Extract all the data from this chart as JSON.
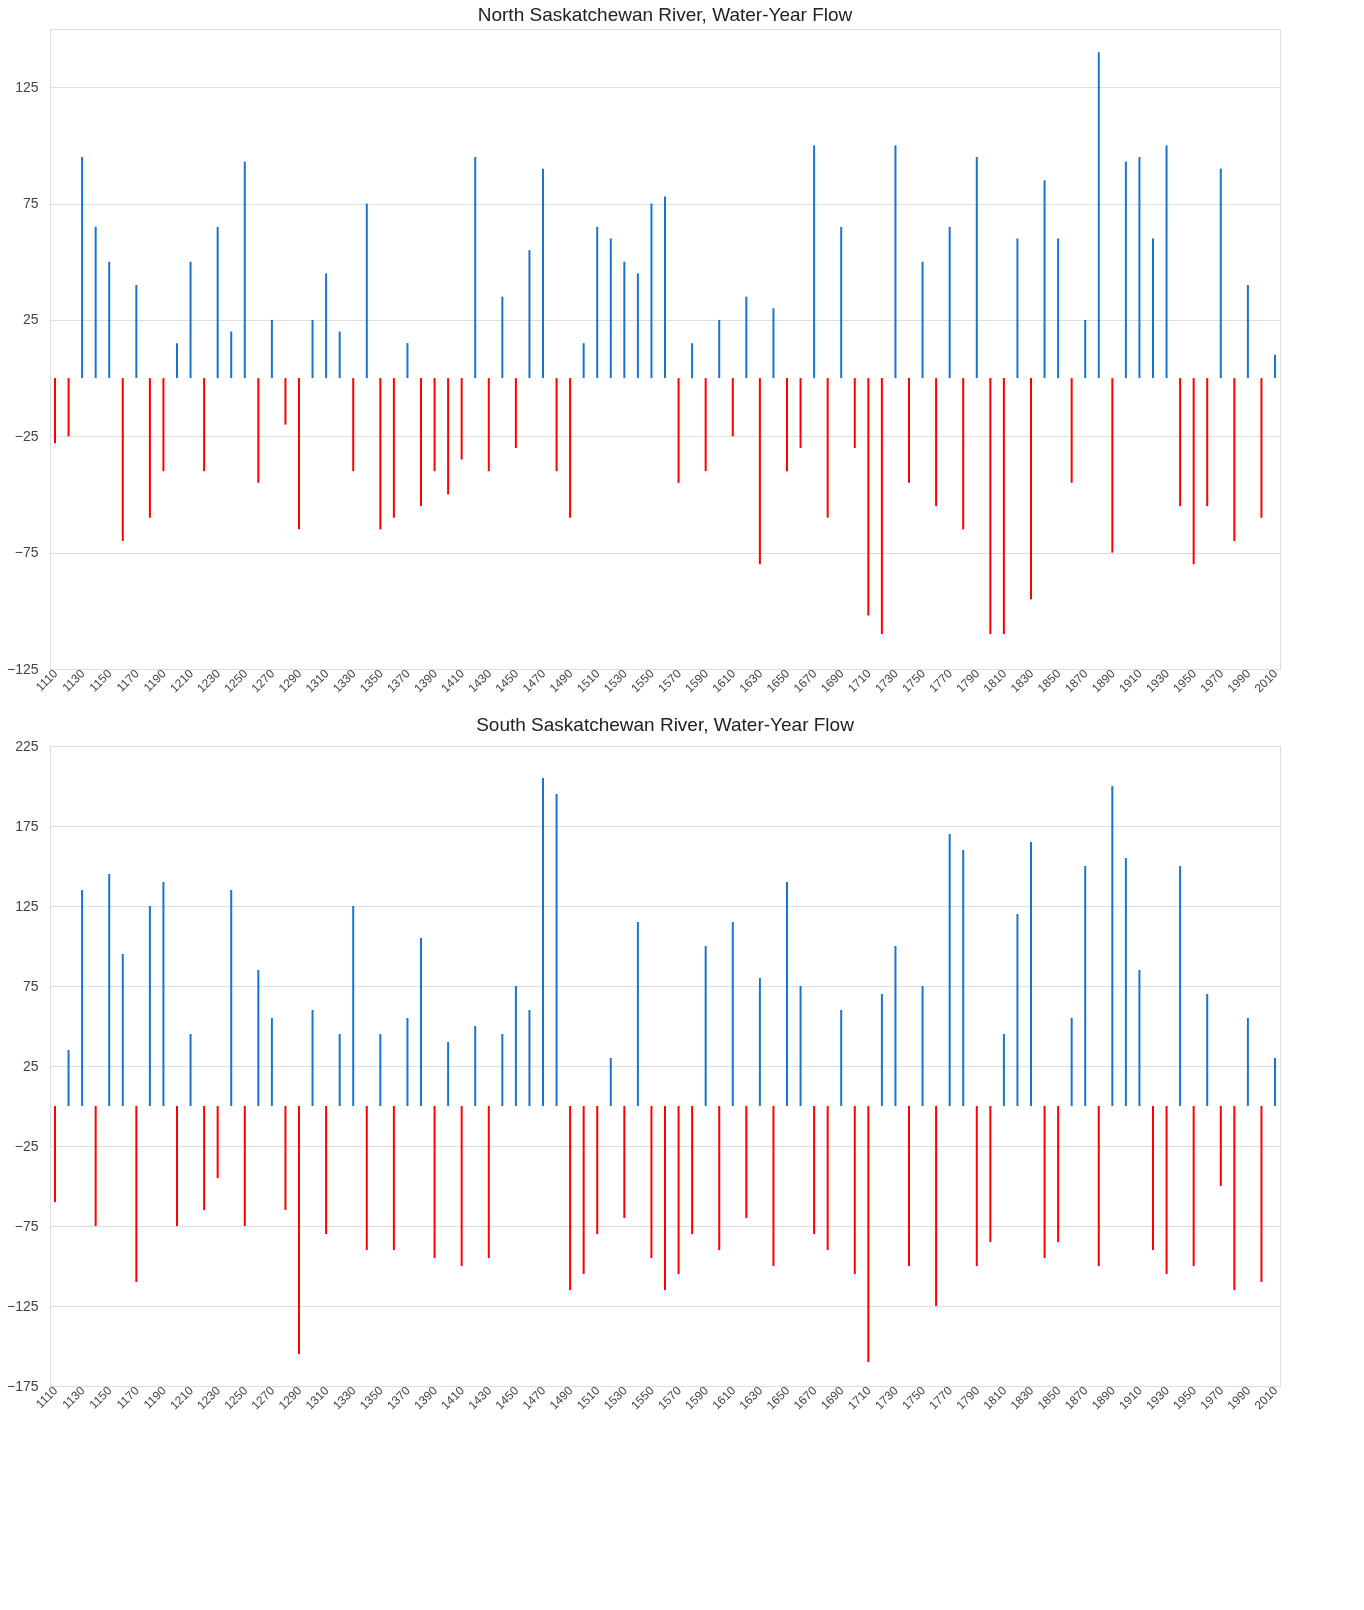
{
  "chart_data": [
    {
      "type": "bar",
      "title": "North Saskatchewan River, Water-Year Flow",
      "grid": "y",
      "xlim": [
        1110,
        2010
      ],
      "xticks": [
        1110,
        1130,
        1150,
        1170,
        1190,
        1210,
        1230,
        1250,
        1270,
        1290,
        1310,
        1330,
        1350,
        1370,
        1390,
        1410,
        1430,
        1450,
        1470,
        1490,
        1510,
        1530,
        1550,
        1570,
        1590,
        1610,
        1630,
        1650,
        1670,
        1690,
        1710,
        1730,
        1750,
        1770,
        1790,
        1810,
        1830,
        1850,
        1870,
        1890,
        1910,
        1930,
        1950,
        1970,
        1990,
        2010
      ],
      "ylim": [
        -125,
        150
      ],
      "yticks": [
        -125,
        -75,
        -25,
        25,
        75,
        125
      ],
      "x": [
        1110,
        1120,
        1130,
        1140,
        1150,
        1160,
        1170,
        1180,
        1190,
        1200,
        1210,
        1220,
        1230,
        1240,
        1250,
        1260,
        1270,
        1280,
        1290,
        1300,
        1310,
        1320,
        1330,
        1340,
        1350,
        1360,
        1370,
        1380,
        1390,
        1400,
        1410,
        1420,
        1430,
        1440,
        1450,
        1460,
        1470,
        1480,
        1490,
        1500,
        1510,
        1520,
        1530,
        1540,
        1550,
        1560,
        1570,
        1580,
        1590,
        1600,
        1610,
        1620,
        1630,
        1640,
        1650,
        1660,
        1670,
        1680,
        1690,
        1700,
        1710,
        1720,
        1730,
        1740,
        1750,
        1760,
        1770,
        1780,
        1790,
        1800,
        1810,
        1820,
        1830,
        1840,
        1850,
        1860,
        1870,
        1880,
        1890,
        1900,
        1910,
        1920,
        1930,
        1940,
        1950,
        1960,
        1970,
        1980,
        1990,
        2000,
        2010
      ],
      "values": [
        -28,
        -25,
        95,
        65,
        50,
        -70,
        40,
        -60,
        -40,
        15,
        50,
        -40,
        65,
        20,
        93,
        -45,
        25,
        -20,
        -65,
        25,
        45,
        20,
        -40,
        75,
        -65,
        -60,
        15,
        -55,
        -40,
        -50,
        -35,
        95,
        -40,
        35,
        -30,
        55,
        90,
        -40,
        -60,
        15,
        65,
        60,
        50,
        45,
        75,
        78,
        -45,
        15,
        -40,
        25,
        -25,
        35,
        -80,
        30,
        -40,
        -30,
        100,
        -60,
        65,
        -30,
        -102,
        -110,
        100,
        -45,
        50,
        -55,
        65,
        -65,
        95,
        -110,
        -110,
        60,
        -95,
        85,
        60,
        -45,
        25,
        140,
        -75,
        93,
        95,
        60,
        100,
        -55,
        -80,
        -55,
        90,
        -70,
        40,
        -60,
        10
      ],
      "colors": [
        "#ff0000",
        "#ff0000",
        "#1874cd",
        "#1874cd",
        "#1874cd",
        "#ff0000",
        "#1874cd",
        "#ff0000",
        "#ff0000",
        "#1874cd",
        "#1874cd",
        "#ff0000",
        "#1874cd",
        "#1874cd",
        "#1874cd",
        "#ff0000",
        "#1874cd",
        "#ff0000",
        "#ff0000",
        "#1874cd",
        "#1874cd",
        "#1874cd",
        "#ff0000",
        "#1874cd",
        "#ff0000",
        "#ff0000",
        "#1874cd",
        "#ff0000",
        "#ff0000",
        "#ff0000",
        "#ff0000",
        "#1874cd",
        "#ff0000",
        "#1874cd",
        "#ff0000",
        "#1874cd",
        "#1874cd",
        "#ff0000",
        "#ff0000",
        "#1874cd",
        "#1874cd",
        "#1874cd",
        "#1874cd",
        "#1874cd",
        "#1874cd",
        "#1874cd",
        "#ff0000",
        "#1874cd",
        "#ff0000",
        "#1874cd",
        "#ff0000",
        "#1874cd",
        "#ff0000",
        "#1874cd",
        "#ff0000",
        "#ff0000",
        "#1874cd",
        "#ff0000",
        "#1874cd",
        "#ff0000",
        "#ff0000",
        "#ff0000",
        "#1874cd",
        "#ff0000",
        "#1874cd",
        "#ff0000",
        "#1874cd",
        "#ff0000",
        "#1874cd",
        "#ff0000",
        "#ff0000",
        "#1874cd",
        "#ff0000",
        "#1874cd",
        "#1874cd",
        "#ff0000",
        "#1874cd",
        "#1874cd",
        "#ff0000",
        "#1874cd",
        "#1874cd",
        "#1874cd",
        "#1874cd",
        "#ff0000",
        "#ff0000",
        "#ff0000",
        "#1874cd",
        "#ff0000",
        "#1874cd",
        "#ff0000",
        "#1874cd"
      ]
    },
    {
      "type": "bar",
      "title": "South Saskatchewan River, Water-Year Flow",
      "grid": "y",
      "xlim": [
        1110,
        2010
      ],
      "xticks": [
        1110,
        1130,
        1150,
        1170,
        1190,
        1210,
        1230,
        1250,
        1270,
        1290,
        1310,
        1330,
        1350,
        1370,
        1390,
        1410,
        1430,
        1450,
        1470,
        1490,
        1510,
        1530,
        1550,
        1570,
        1590,
        1610,
        1630,
        1650,
        1670,
        1690,
        1710,
        1730,
        1750,
        1770,
        1790,
        1810,
        1830,
        1850,
        1870,
        1890,
        1910,
        1930,
        1950,
        1970,
        1990,
        2010
      ],
      "ylim": [
        -175,
        225
      ],
      "yticks": [
        -175,
        -125,
        -75,
        -25,
        25,
        75,
        125,
        175,
        225
      ],
      "x": [
        1110,
        1120,
        1130,
        1140,
        1150,
        1160,
        1170,
        1180,
        1190,
        1200,
        1210,
        1220,
        1230,
        1240,
        1250,
        1260,
        1270,
        1280,
        1290,
        1300,
        1310,
        1320,
        1330,
        1340,
        1350,
        1360,
        1370,
        1380,
        1390,
        1400,
        1410,
        1420,
        1430,
        1440,
        1450,
        1460,
        1470,
        1480,
        1490,
        1500,
        1510,
        1520,
        1530,
        1540,
        1550,
        1560,
        1570,
        1580,
        1590,
        1600,
        1610,
        1620,
        1630,
        1640,
        1650,
        1660,
        1670,
        1680,
        1690,
        1700,
        1710,
        1720,
        1730,
        1740,
        1750,
        1760,
        1770,
        1780,
        1790,
        1800,
        1810,
        1820,
        1830,
        1840,
        1850,
        1860,
        1870,
        1880,
        1890,
        1900,
        1910,
        1920,
        1930,
        1940,
        1950,
        1960,
        1970,
        1980,
        1990,
        2000,
        2010
      ],
      "values": [
        -60,
        35,
        135,
        -75,
        145,
        95,
        -110,
        125,
        140,
        -75,
        45,
        -65,
        -45,
        135,
        -75,
        85,
        55,
        -65,
        -155,
        60,
        -80,
        45,
        125,
        -90,
        45,
        -90,
        55,
        105,
        -95,
        40,
        -100,
        50,
        -95,
        45,
        75,
        60,
        205,
        195,
        -115,
        -105,
        -80,
        30,
        -70,
        115,
        -95,
        -115,
        -105,
        -80,
        100,
        -90,
        115,
        -70,
        80,
        -100,
        140,
        75,
        -80,
        -90,
        60,
        -105,
        -160,
        70,
        100,
        -100,
        75,
        -125,
        170,
        160,
        -100,
        -85,
        45,
        120,
        165,
        -95,
        -85,
        55,
        150,
        -100,
        200,
        155,
        85,
        -90,
        -105,
        150,
        -100,
        70,
        -50,
        -115,
        55,
        -110,
        30
      ],
      "colors": [
        "#ff0000",
        "#1874cd",
        "#1874cd",
        "#ff0000",
        "#1874cd",
        "#1874cd",
        "#ff0000",
        "#1874cd",
        "#1874cd",
        "#ff0000",
        "#1874cd",
        "#ff0000",
        "#ff0000",
        "#1874cd",
        "#ff0000",
        "#1874cd",
        "#1874cd",
        "#ff0000",
        "#ff0000",
        "#1874cd",
        "#ff0000",
        "#1874cd",
        "#1874cd",
        "#ff0000",
        "#1874cd",
        "#ff0000",
        "#1874cd",
        "#1874cd",
        "#ff0000",
        "#1874cd",
        "#ff0000",
        "#1874cd",
        "#ff0000",
        "#1874cd",
        "#1874cd",
        "#1874cd",
        "#1874cd",
        "#1874cd",
        "#ff0000",
        "#ff0000",
        "#ff0000",
        "#1874cd",
        "#ff0000",
        "#1874cd",
        "#ff0000",
        "#ff0000",
        "#ff0000",
        "#ff0000",
        "#1874cd",
        "#ff0000",
        "#1874cd",
        "#ff0000",
        "#1874cd",
        "#ff0000",
        "#1874cd",
        "#1874cd",
        "#ff0000",
        "#ff0000",
        "#1874cd",
        "#ff0000",
        "#ff0000",
        "#1874cd",
        "#1874cd",
        "#ff0000",
        "#1874cd",
        "#ff0000",
        "#1874cd",
        "#1874cd",
        "#ff0000",
        "#ff0000",
        "#1874cd",
        "#1874cd",
        "#1874cd",
        "#ff0000",
        "#ff0000",
        "#1874cd",
        "#1874cd",
        "#ff0000",
        "#1874cd",
        "#1874cd",
        "#1874cd",
        "#ff0000",
        "#ff0000",
        "#1874cd",
        "#ff0000",
        "#1874cd",
        "#ff0000",
        "#ff0000",
        "#1874cd",
        "#ff0000",
        "#1874cd"
      ]
    }
  ]
}
